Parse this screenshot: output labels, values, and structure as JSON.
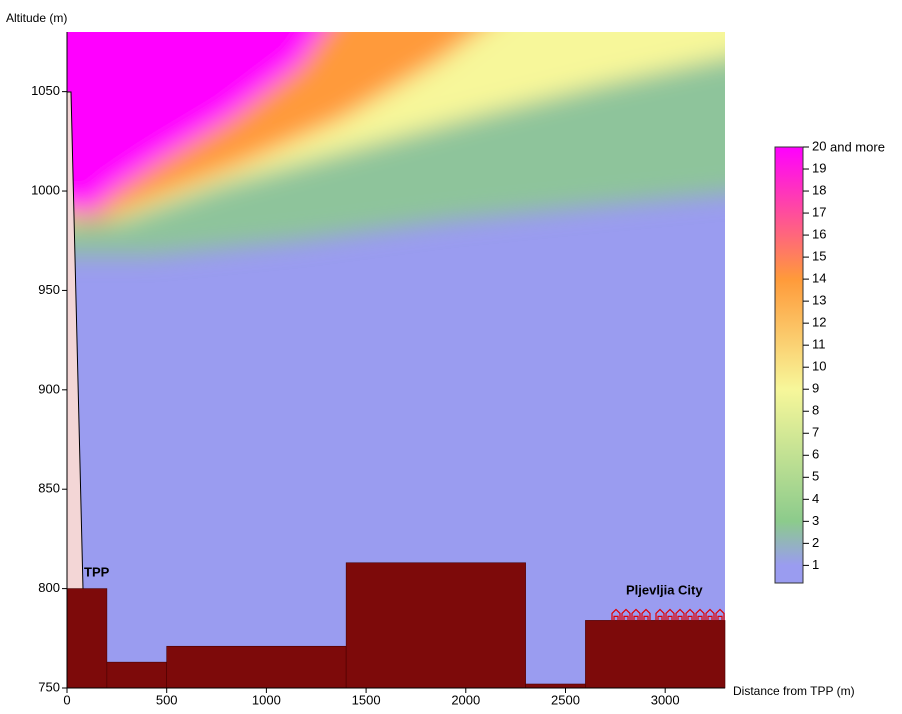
{
  "chart_data": {
    "type": "field",
    "x_label": "Distance from TPP (m)",
    "y_label": "Altitude (m)",
    "xlim": [
      0,
      3300
    ],
    "ylim": [
      750,
      1080
    ],
    "xticks": [
      0,
      500,
      1000,
      1500,
      2000,
      2500,
      3000
    ],
    "yticks": [
      750,
      800,
      850,
      900,
      950,
      1000,
      1050
    ],
    "terrain_edges": [
      0,
      200,
      500,
      1400,
      2300,
      2600,
      3300
    ],
    "terrain_altitude": [
      800,
      763,
      771,
      813,
      752,
      784
    ],
    "terrain_color": "#7d0a0a",
    "annotations": [
      "TPP",
      "Pljevljia City"
    ],
    "colorbar": {
      "lim": [
        0.2,
        20
      ],
      "ticks": [
        1,
        2,
        3,
        4,
        5,
        6,
        7,
        8,
        9,
        10,
        11,
        12,
        13,
        14,
        15,
        16,
        17,
        18,
        19,
        20
      ],
      "top_label": "and more",
      "stops": [
        {
          "value": 1,
          "color": "#9a9cf0"
        },
        {
          "value": 3,
          "color": "#8ccb8c"
        },
        {
          "value": 9,
          "color": "#f7f79a"
        },
        {
          "value": 14,
          "color": "#ff9a3a"
        },
        {
          "value": 20,
          "color": "#ff00ff"
        }
      ]
    }
  }
}
